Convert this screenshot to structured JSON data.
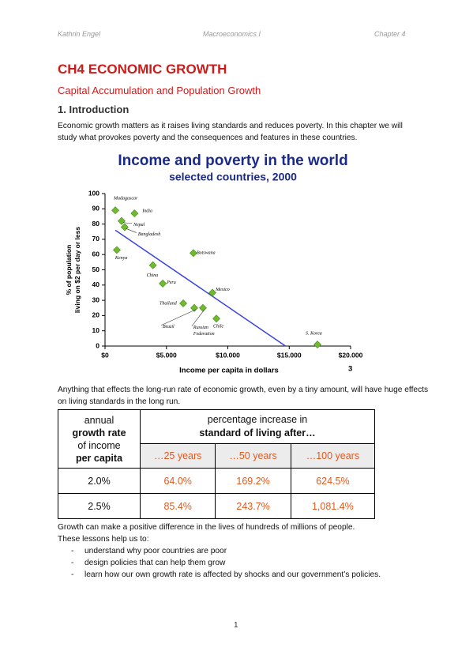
{
  "header": {
    "left": "Kathrin Engel",
    "center": "Macroeconomics I",
    "right": "Chapter 4"
  },
  "title": "CH4 ECONOMIC GROWTH",
  "subtitle": "Capital Accumulation and Population Growth",
  "section": "1. Introduction",
  "paragraphs": [
    "Economic growth matters as it raises living standards and reduces poverty. In this chapter we will study what provokes poverty and the consequences and features in these countries.",
    "Anything that effects the long-run rate of economic growth, even by a tiny amount, will have huge effects on living standards in the long run.",
    "Growth can make a positive difference in the lives of hundreds of millions of people.",
    "These lessons help us to:"
  ],
  "list": [
    "understand why poor countries are poor",
    "design policies that can help them grow",
    "learn how our own growth rate is affected by shocks and our government’s policies."
  ],
  "chart_data": {
    "type": "scatter",
    "title": "Income and poverty in the world",
    "subtitle": "selected countries, 2000",
    "y_label": [
      "% of population",
      "living on $2 per day or less"
    ],
    "x_label": "Income per capita in dollars",
    "slide_number": "3",
    "point_labels": [
      "Madagascar",
      "India",
      "Nepal",
      "Bangladesh",
      "Kenya",
      "Botswana",
      "China",
      "Peru",
      "Mexico",
      "Thailand",
      "Brazil",
      [
        "Russian",
        "Federation"
      ],
      "Chile",
      "S. Korea"
    ],
    "x": [
      840,
      2400,
      1350,
      1600,
      960,
      7200,
      3900,
      4700,
      8750,
      6370,
      7270,
      7970,
      9070,
      17300
    ],
    "values": [
      89,
      87,
      82,
      78,
      63,
      61,
      53,
      41,
      35,
      28,
      25,
      25,
      18,
      1
    ],
    "color": "#6dbb2e",
    "trendline": {
      "x": [
        840,
        14700
      ],
      "values": [
        76,
        0
      ],
      "color": "#3a45e0"
    },
    "xlim": [
      0,
      20000
    ],
    "ylim": [
      0,
      100
    ],
    "xticks": [
      {
        "value": 0,
        "label": "$0"
      },
      {
        "value": 5000,
        "label": "$5.000"
      },
      {
        "value": 10000,
        "label": "$10.000"
      },
      {
        "value": 15000,
        "label": "$15.000"
      },
      {
        "value": 20000,
        "label": "$20.000"
      }
    ],
    "yticks": [
      0,
      10,
      20,
      30,
      40,
      50,
      60,
      70,
      80,
      90,
      100
    ]
  },
  "table": {
    "corner": [
      "annual",
      "growth rate",
      "of income",
      "per capita"
    ],
    "header": [
      "percentage increase in",
      "standard of living after…"
    ],
    "columns": [
      "…25 years",
      "…50 years",
      "…100 years"
    ],
    "rows": [
      [
        "2.0%",
        "64.0%",
        "169.2%",
        "624.5%"
      ],
      [
        "2.5%",
        "85.4%",
        "243.7%",
        "1,081.4%"
      ]
    ]
  },
  "footer": "1"
}
